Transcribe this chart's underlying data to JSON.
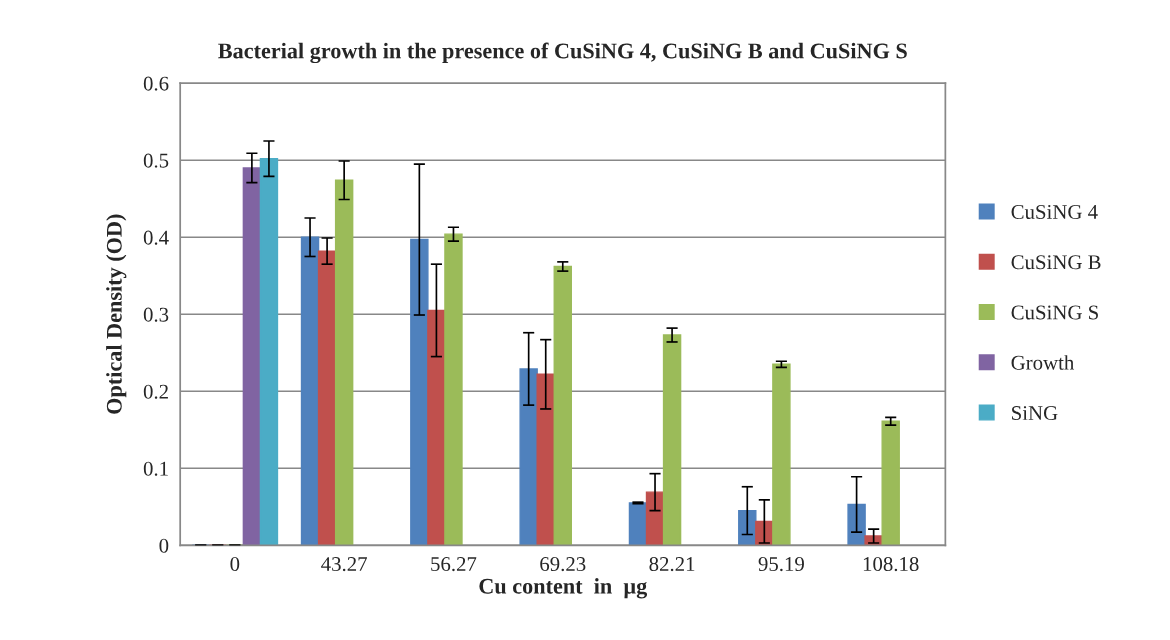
{
  "chart_data": {
    "type": "bar",
    "title": "Bacterial growth in the presence of CuSiNG 4, CuSiNG B and CuSiNG S",
    "xlabel": "Cu content  in  µg",
    "ylabel": "Optical Density (OD)",
    "categories": [
      "0",
      "43.27",
      "56.27",
      "69.23",
      "82.21",
      "95.19",
      "108.18"
    ],
    "series": [
      {
        "name": "CuSiNG 4",
        "color": "#4f81bd",
        "values": [
          0,
          0.4,
          0.397,
          0.229,
          0.055,
          0.045,
          0.053
        ],
        "errors": [
          0,
          0.025,
          0.098,
          0.047,
          0.001,
          0.031,
          0.036
        ]
      },
      {
        "name": "CuSiNG B",
        "color": "#c0504d",
        "values": [
          0,
          0.382,
          0.305,
          0.222,
          0.069,
          0.031,
          0.012
        ],
        "errors": [
          0,
          0.017,
          0.06,
          0.045,
          0.024,
          0.028,
          0.009
        ]
      },
      {
        "name": "CuSiNG S",
        "color": "#9bbb59",
        "values": [
          0,
          0.474,
          0.404,
          0.362,
          0.273,
          0.235,
          0.161
        ],
        "errors": [
          0,
          0.025,
          0.009,
          0.006,
          0.009,
          0.004,
          0.005
        ]
      },
      {
        "name": "Growth",
        "color": "#8064a2",
        "values": [
          0.49,
          null,
          null,
          null,
          null,
          null,
          null
        ],
        "errors": [
          0.019,
          null,
          null,
          null,
          null,
          null,
          null
        ]
      },
      {
        "name": "SiNG",
        "color": "#4bacc6",
        "values": [
          0.502,
          null,
          null,
          null,
          null,
          null,
          null
        ],
        "errors": [
          0.023,
          null,
          null,
          null,
          null,
          null,
          null
        ]
      }
    ],
    "ylim": [
      0,
      0.6
    ],
    "yticks": [
      0,
      0.1,
      0.2,
      0.3,
      0.4,
      0.5,
      0.6
    ],
    "grid": "y",
    "legend": "right"
  }
}
